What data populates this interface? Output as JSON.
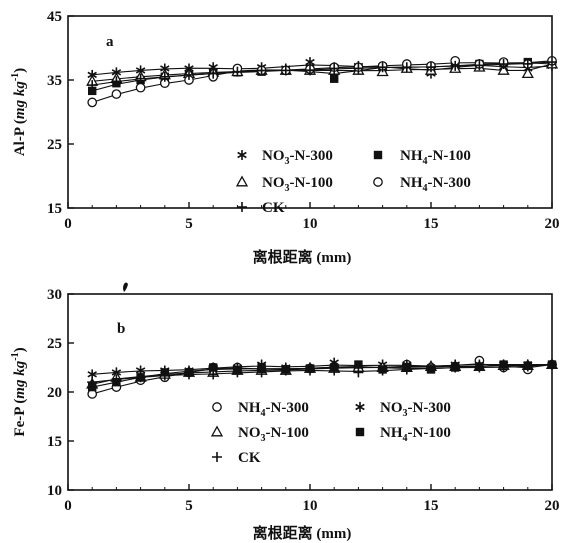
{
  "chart_data": [
    {
      "type": "line",
      "panel_label": "a",
      "ylabel": {
        "prefix": "Al-P (",
        "unit_main": "mg kg",
        "unit_sup": "-1",
        "suffix": ")"
      },
      "xlabel": "离根距离 (mm)",
      "xlim": [
        0,
        20
      ],
      "ylim": [
        15,
        45
      ],
      "xticks": [
        0,
        5,
        10,
        15,
        20
      ],
      "yticks": [
        15,
        25,
        35,
        45
      ],
      "xtick_labels": [
        "0",
        "5",
        "10",
        "15",
        "20"
      ],
      "ytick_labels": [
        "15",
        "25",
        "35",
        "45"
      ],
      "series": [
        {
          "name": "NO3-N-300",
          "label_parts": [
            "NO",
            "3",
            "-N-300"
          ],
          "marker": "star",
          "x": [
            1,
            2,
            3,
            4,
            5,
            6,
            7,
            8,
            9,
            10,
            11,
            12,
            13,
            14,
            15,
            16,
            17,
            18,
            19,
            20
          ],
          "y": [
            35.8,
            36.2,
            36.5,
            36.8,
            36.8,
            37.0,
            36.5,
            37.0,
            36.8,
            37.8,
            37.0,
            37.2,
            37.0,
            37.0,
            36.0,
            37.2,
            37.5,
            37.0,
            36.8,
            37.2
          ]
        },
        {
          "name": "NH4-N-100",
          "label_parts": [
            "NH",
            "4",
            "-N-100"
          ],
          "marker": "square",
          "x": [
            1,
            2,
            3,
            4,
            5,
            6,
            7,
            8,
            9,
            10,
            11,
            12,
            13,
            14,
            15,
            16,
            17,
            18,
            19,
            20
          ],
          "y": [
            33.3,
            34.5,
            35.0,
            35.5,
            35.8,
            36.0,
            36.2,
            36.3,
            36.5,
            36.8,
            35.2,
            36.8,
            37.0,
            37.0,
            37.0,
            37.2,
            37.5,
            37.6,
            37.8,
            37.5
          ]
        },
        {
          "name": "NO3-N-100",
          "label_parts": [
            "NO",
            "3",
            "-N-100"
          ],
          "marker": "triangle",
          "x": [
            1,
            2,
            3,
            4,
            5,
            6,
            7,
            8,
            9,
            10,
            11,
            12,
            13,
            14,
            15,
            16,
            17,
            18,
            19,
            20
          ],
          "y": [
            34.8,
            35.2,
            35.5,
            35.8,
            36.0,
            36.2,
            36.3,
            36.5,
            36.5,
            36.5,
            36.5,
            36.5,
            36.3,
            36.8,
            36.5,
            36.8,
            37.0,
            36.5,
            36.0,
            37.5
          ]
        },
        {
          "name": "NH4-N-300",
          "label_parts": [
            "NH",
            "4",
            "-N-300"
          ],
          "marker": "circle",
          "x": [
            1,
            2,
            3,
            4,
            5,
            6,
            7,
            8,
            9,
            10,
            11,
            12,
            13,
            14,
            15,
            16,
            17,
            18,
            19,
            20
          ],
          "y": [
            31.5,
            32.8,
            33.8,
            34.5,
            35.0,
            35.5,
            36.8,
            36.5,
            36.5,
            36.7,
            37.0,
            37.0,
            37.2,
            37.5,
            37.2,
            38.0,
            37.5,
            37.8,
            37.5,
            38.0
          ]
        },
        {
          "name": "CK",
          "label_parts": [
            "CK",
            "",
            ""
          ],
          "marker": "plus",
          "x": [
            1,
            2,
            3,
            4,
            5,
            6,
            7,
            8,
            9,
            10,
            11,
            12,
            13,
            14,
            15,
            16,
            17,
            18,
            19,
            20
          ],
          "y": [
            34.2,
            34.8,
            35.2,
            35.5,
            35.8,
            36.0,
            36.3,
            36.5,
            36.5,
            36.5,
            36.8,
            36.8,
            37.0,
            37.0,
            37.0,
            37.2,
            37.3,
            37.5,
            37.5,
            37.8
          ]
        }
      ],
      "legend_order": [
        [
          0,
          1
        ],
        [
          2,
          3
        ],
        [
          4
        ]
      ]
    },
    {
      "type": "line",
      "panel_label": "b",
      "ylabel": {
        "prefix": "Fe-P (",
        "unit_main": "mg kg",
        "unit_sup": "-1",
        "suffix": ")"
      },
      "xlabel": "离根距离 (mm)",
      "xlim": [
        0,
        20
      ],
      "ylim": [
        10,
        30
      ],
      "xticks": [
        0,
        5,
        10,
        15,
        20
      ],
      "yticks": [
        10,
        15,
        20,
        25,
        30
      ],
      "xtick_labels": [
        "0",
        "5",
        "10",
        "15",
        "20"
      ],
      "ytick_labels": [
        "10",
        "15",
        "20",
        "25",
        "30"
      ],
      "series": [
        {
          "name": "NH4-N-300",
          "label_parts": [
            "NH",
            "4",
            "-N-300"
          ],
          "marker": "circle",
          "x": [
            1,
            2,
            3,
            4,
            5,
            6,
            7,
            8,
            9,
            10,
            11,
            12,
            13,
            14,
            15,
            16,
            17,
            18,
            19,
            20
          ],
          "y": [
            19.8,
            20.5,
            21.2,
            21.5,
            22.0,
            22.5,
            22.5,
            22.3,
            22.3,
            22.4,
            22.6,
            22.5,
            22.4,
            22.8,
            22.5,
            22.6,
            23.2,
            22.5,
            22.3,
            22.8
          ]
        },
        {
          "name": "NO3-N-300",
          "label_parts": [
            "NO",
            "3",
            "-N-300"
          ],
          "marker": "star",
          "x": [
            1,
            2,
            3,
            4,
            5,
            6,
            7,
            8,
            9,
            10,
            11,
            12,
            13,
            14,
            15,
            16,
            17,
            18,
            19,
            20
          ],
          "y": [
            21.8,
            22.0,
            22.2,
            22.2,
            22.2,
            22.5,
            22.5,
            22.8,
            22.5,
            22.5,
            23.0,
            22.5,
            22.8,
            22.8,
            22.5,
            22.8,
            22.8,
            22.8,
            22.8,
            22.8
          ]
        },
        {
          "name": "NO3-N-100",
          "label_parts": [
            "NO",
            "3",
            "-N-100"
          ],
          "marker": "triangle",
          "x": [
            1,
            2,
            3,
            4,
            5,
            6,
            7,
            8,
            9,
            10,
            11,
            12,
            13,
            14,
            15,
            16,
            17,
            18,
            19,
            20
          ],
          "y": [
            20.8,
            21.5,
            21.5,
            21.8,
            22.0,
            22.0,
            22.2,
            22.2,
            22.2,
            22.4,
            22.4,
            22.5,
            22.5,
            22.5,
            22.6,
            22.6,
            22.6,
            22.7,
            22.7,
            22.8
          ]
        },
        {
          "name": "NH4-N-100",
          "label_parts": [
            "NH",
            "4",
            "-N-100"
          ],
          "marker": "square",
          "x": [
            1,
            2,
            3,
            4,
            5,
            6,
            7,
            8,
            9,
            10,
            11,
            12,
            13,
            14,
            15,
            16,
            17,
            18,
            19,
            20
          ],
          "y": [
            20.5,
            21.0,
            21.5,
            22.0,
            22.0,
            22.5,
            22.2,
            22.5,
            22.3,
            22.4,
            22.5,
            22.8,
            22.3,
            22.5,
            22.3,
            22.5,
            22.6,
            22.8,
            22.7,
            22.8
          ]
        },
        {
          "name": "CK",
          "label_parts": [
            "CK",
            "",
            ""
          ],
          "marker": "plus",
          "x": [
            1,
            2,
            3,
            4,
            5,
            6,
            7,
            8,
            9,
            10,
            11,
            12,
            13,
            14,
            15,
            16,
            17,
            18,
            19,
            20
          ],
          "y": [
            21.0,
            21.3,
            21.5,
            21.7,
            21.8,
            21.8,
            22.0,
            22.0,
            22.2,
            22.2,
            22.2,
            22.0,
            22.2,
            22.3,
            22.4,
            22.5,
            22.5,
            22.5,
            22.6,
            22.8
          ]
        }
      ],
      "legend_order": [
        [
          0,
          1
        ],
        [
          2,
          3
        ],
        [
          4
        ]
      ]
    }
  ]
}
